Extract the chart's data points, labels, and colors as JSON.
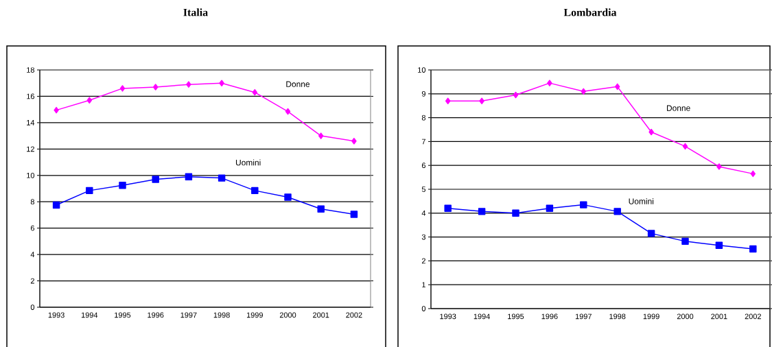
{
  "chart_data": [
    {
      "type": "line",
      "title": "Italia",
      "categories": [
        "1993",
        "1994",
        "1995",
        "1996",
        "1997",
        "1998",
        "1999",
        "2000",
        "2001",
        "2002"
      ],
      "ylim": [
        0,
        18
      ],
      "yticks": [
        0,
        2,
        4,
        6,
        8,
        10,
        12,
        14,
        16,
        18
      ],
      "grid": "y",
      "legend": false,
      "series": [
        {
          "name": "Donne",
          "color": "#ff00ff",
          "marker": "diamond",
          "values": [
            14.95,
            15.7,
            16.6,
            16.7,
            16.9,
            17.0,
            16.3,
            14.85,
            13.0,
            12.6
          ]
        },
        {
          "name": "Uomini",
          "color": "#0000ff",
          "marker": "square",
          "values": [
            7.75,
            8.85,
            9.25,
            9.7,
            9.9,
            9.8,
            8.85,
            8.35,
            7.45,
            7.05
          ]
        }
      ]
    },
    {
      "type": "line",
      "title": "Lombardia",
      "categories": [
        "1993",
        "1994",
        "1995",
        "1996",
        "1997",
        "1998",
        "1999",
        "2000",
        "2001",
        "2002"
      ],
      "ylim": [
        0,
        10
      ],
      "yticks": [
        0,
        1,
        2,
        3,
        4,
        5,
        6,
        7,
        8,
        9,
        10
      ],
      "grid": "y",
      "legend": false,
      "series": [
        {
          "name": "Donne",
          "color": "#ff00ff",
          "marker": "diamond",
          "values": [
            8.7,
            8.7,
            8.95,
            9.45,
            9.1,
            9.3,
            7.4,
            6.8,
            5.95,
            5.65
          ]
        },
        {
          "name": "Uomini",
          "color": "#0000ff",
          "marker": "square",
          "values": [
            4.2,
            4.07,
            4.0,
            4.2,
            4.35,
            4.07,
            3.15,
            2.82,
            2.65,
            2.5
          ]
        }
      ]
    }
  ]
}
